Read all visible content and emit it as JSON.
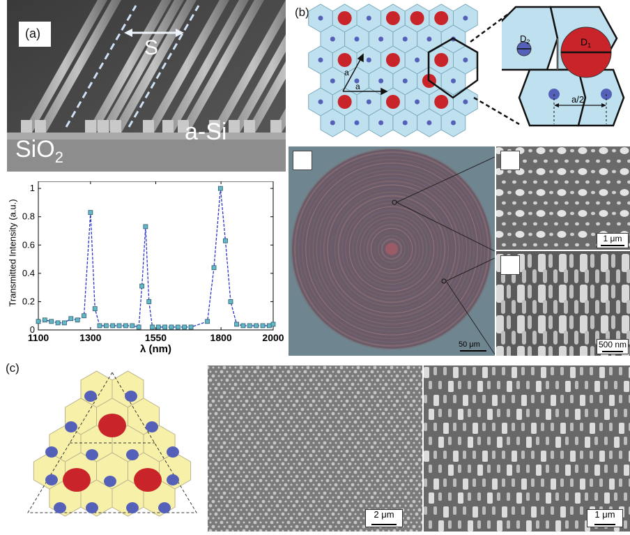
{
  "panel_a": {
    "label": "(a)",
    "spacing_label": "S",
    "material_top": "a-Si",
    "material_bottom": "SiO",
    "material_bottom_sub": "2"
  },
  "panel_b": {
    "label": "(b)",
    "lattice_label_a1": "a",
    "lattice_label_a2": "a",
    "d2_label": "D",
    "d2_sub": "2",
    "d1_label": "D",
    "d1_sub": "1",
    "half_a_label": "a/2",
    "optical_scale": "50 μm",
    "sem_top_scale": "1 μm",
    "sem_bottom_scale": "500 nm"
  },
  "panel_c": {
    "label": "(c)",
    "sem_left_scale": "2 μm",
    "sem_right_scale": "1 μm"
  },
  "colors": {
    "red_pillar": "#c8242a",
    "blue_pillar": "#5560b8",
    "cell_blue": "#bfe0ee",
    "cell_yellow": "#f7f0a8",
    "series": "#2a34c8",
    "marker": "#62b8c4"
  },
  "chart_data": {
    "type": "line",
    "title": "",
    "xlabel": "λ (nm)",
    "ylabel": "Transmitted Intensity (a.u.)",
    "xlim": [
      1100,
      2000
    ],
    "ylim": [
      0,
      1.05
    ],
    "xticks": [
      1100,
      1300,
      1550,
      1800,
      2000
    ],
    "yticks": [
      0,
      0.2,
      0.4,
      0.6,
      0.8,
      1
    ],
    "ytick_labels": [
      "0",
      "0.2",
      "0.4",
      "0.6",
      "0.8",
      "1"
    ],
    "grid": false,
    "series": [
      {
        "x": [
          1100,
          1125,
          1150,
          1175,
          1200,
          1225,
          1250,
          1275,
          1300,
          1317,
          1335,
          1360,
          1385,
          1410,
          1435,
          1460,
          1485,
          1497,
          1511,
          1524,
          1537,
          1560,
          1585,
          1610,
          1635,
          1660,
          1685,
          1748,
          1773,
          1798,
          1817,
          1837,
          1860,
          1885,
          1910,
          1935,
          1960,
          1985,
          2000
        ],
        "y": [
          0.06,
          0.07,
          0.06,
          0.05,
          0.05,
          0.08,
          0.07,
          0.1,
          0.83,
          0.15,
          0.03,
          0.03,
          0.03,
          0.03,
          0.03,
          0.03,
          0.02,
          0.31,
          0.73,
          0.2,
          0.02,
          0.02,
          0.02,
          0.02,
          0.02,
          0.02,
          0.02,
          0.06,
          0.44,
          1.0,
          0.63,
          0.2,
          0.04,
          0.03,
          0.03,
          0.03,
          0.03,
          0.03,
          0.04
        ]
      }
    ]
  }
}
